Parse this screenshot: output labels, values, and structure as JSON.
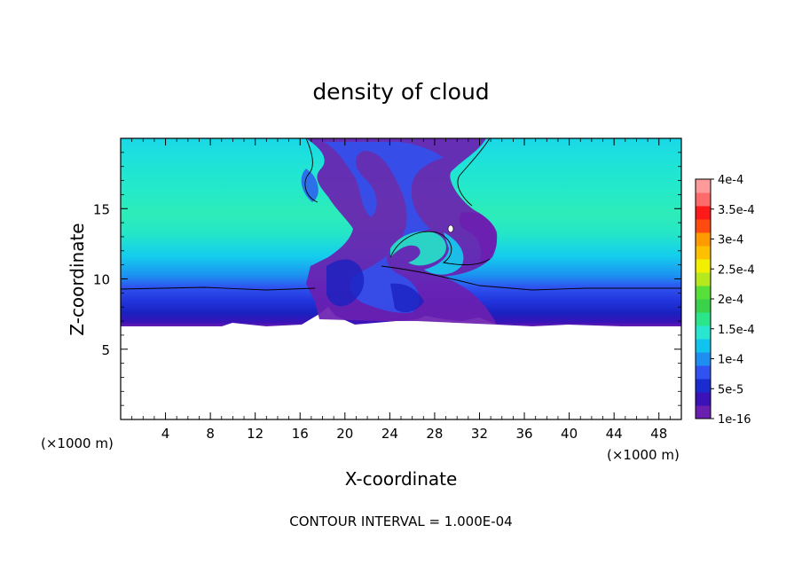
{
  "chart_data": {
    "type": "heatmap",
    "title": "density of cloud",
    "xlabel": "X-coordinate",
    "ylabel": "Z-coordinate",
    "x_unit_left": "(×1000 m)",
    "x_unit_right": "(×1000 m)",
    "footer": "CONTOUR INTERVAL = 1.000E-04",
    "xlim": [
      0,
      50
    ],
    "ylim": [
      0,
      20
    ],
    "x_ticks": [
      "4",
      "8",
      "12",
      "16",
      "20",
      "24",
      "28",
      "32",
      "36",
      "40",
      "44",
      "48"
    ],
    "y_ticks": [
      "5",
      "10",
      "15"
    ],
    "colorbar": {
      "labels": [
        "1e-16",
        "5e-5",
        "1e-4",
        "1.5e-4",
        "2e-4",
        "2.5e-4",
        "3e-4",
        "3.5e-4",
        "4e-4"
      ],
      "colors": [
        "#6b1fb0",
        "#3a12b8",
        "#1a2bd0",
        "#2f52f0",
        "#1e8ff0",
        "#11c4f0",
        "#28e6d0",
        "#2be58a",
        "#3ad24a",
        "#57e03a",
        "#b6e81e",
        "#f2f000",
        "#ffc000",
        "#ff9a00",
        "#ff4a10",
        "#ff1a1a",
        "#ff6a6a",
        "#ff9a9a"
      ]
    },
    "zero_region_below_z": 6.8,
    "layers": [
      {
        "z_range": [
          6.8,
          7.3
        ],
        "value": "1e-16"
      },
      {
        "z_range": [
          7.3,
          9.5
        ],
        "value": "5e-5"
      },
      {
        "z_range": [
          9.5,
          11.5
        ],
        "value": "1e-4"
      },
      {
        "z_range": [
          11.5,
          14.0
        ],
        "value": "1.5e-4 (upper teal)"
      },
      {
        "z_range": [
          14.0,
          16.0
        ],
        "value": "peak near 1.5e-4"
      },
      {
        "z_range": [
          16.0,
          20.0
        ],
        "value": "1e-4 to 1.5e-4"
      }
    ]
  }
}
